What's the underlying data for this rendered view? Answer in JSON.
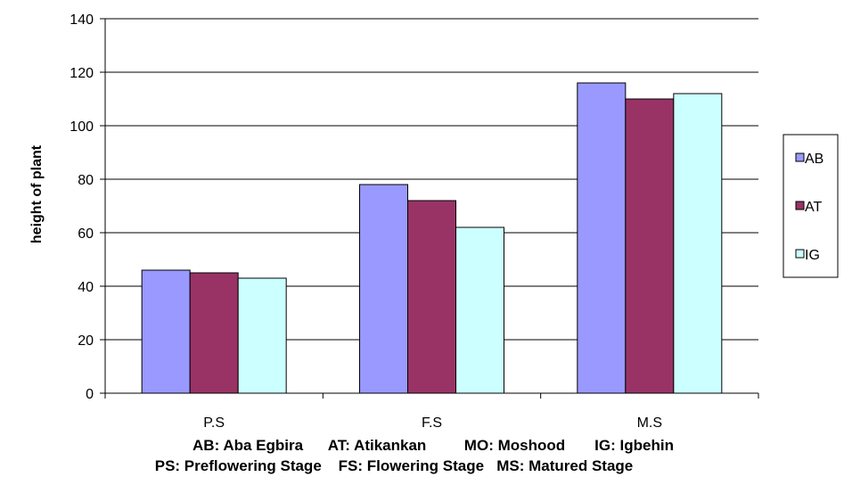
{
  "chart_data": {
    "type": "bar",
    "categories": [
      "P.S",
      "F.S",
      "M.S"
    ],
    "series": [
      {
        "name": "AB",
        "color": "#9999ff",
        "values": [
          46,
          78,
          116
        ]
      },
      {
        "name": "AT",
        "color": "#993366",
        "values": [
          45,
          72,
          110
        ]
      },
      {
        "name": "IG",
        "color": "#ccffff",
        "values": [
          43,
          62,
          112
        ]
      }
    ],
    "title": "",
    "xlabel": "",
    "ylabel": "height of plant",
    "ylim": [
      0,
      140
    ],
    "yticks": [
      "0",
      "20",
      "40",
      "60",
      "80",
      "100",
      "120",
      "140"
    ],
    "grid": true,
    "legend_position": "right",
    "notes": [
      "AB: Aba Egbira      AT: Atikankan         MO: Moshood       IG: Igbehin",
      "PS: Preflowering Stage    FS: Flowering Stage   MS: Matured Stage"
    ]
  }
}
